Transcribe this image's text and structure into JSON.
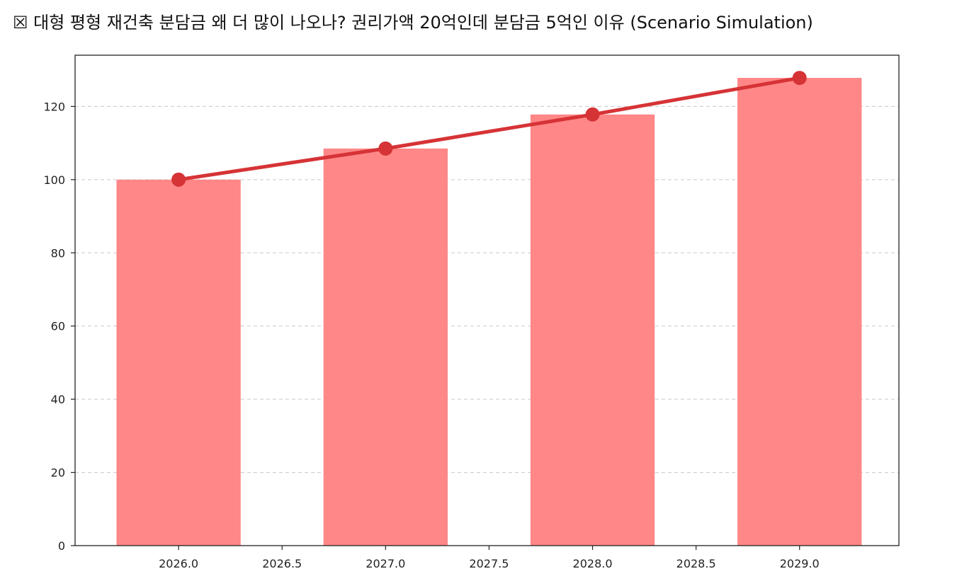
{
  "chart_data": {
    "type": "bar",
    "title": "☒ 대형 평형 재건축 분담금 왜 더 많이 나오나? 권리가액 20억인데 분담금 5억인 이유 (Scenario Simulation)",
    "xlabel": "",
    "ylabel": "",
    "x": [
      2026,
      2027,
      2028,
      2029
    ],
    "series": [
      {
        "type": "bar",
        "values": [
          100,
          108.5,
          117.8,
          127.8
        ],
        "color": "#ff8787"
      },
      {
        "type": "line",
        "values": [
          100,
          108.5,
          117.8,
          127.8
        ],
        "color": "#d63336",
        "marker": "circle"
      }
    ],
    "xlim": [
      2025.5,
      2029.48
    ],
    "ylim": [
      0,
      134
    ],
    "xticks": [
      "2026.0",
      "2026.5",
      "2027.0",
      "2027.5",
      "2028.0",
      "2028.5",
      "2029.0"
    ],
    "xtick_values": [
      2026,
      2026.5,
      2027,
      2027.5,
      2028,
      2028.5,
      2029
    ],
    "yticks": [
      "0",
      "20",
      "40",
      "60",
      "80",
      "100",
      "120"
    ],
    "ytick_values": [
      0,
      20,
      40,
      60,
      80,
      100,
      120
    ],
    "grid": "horizontal dashed",
    "legend": "none"
  }
}
